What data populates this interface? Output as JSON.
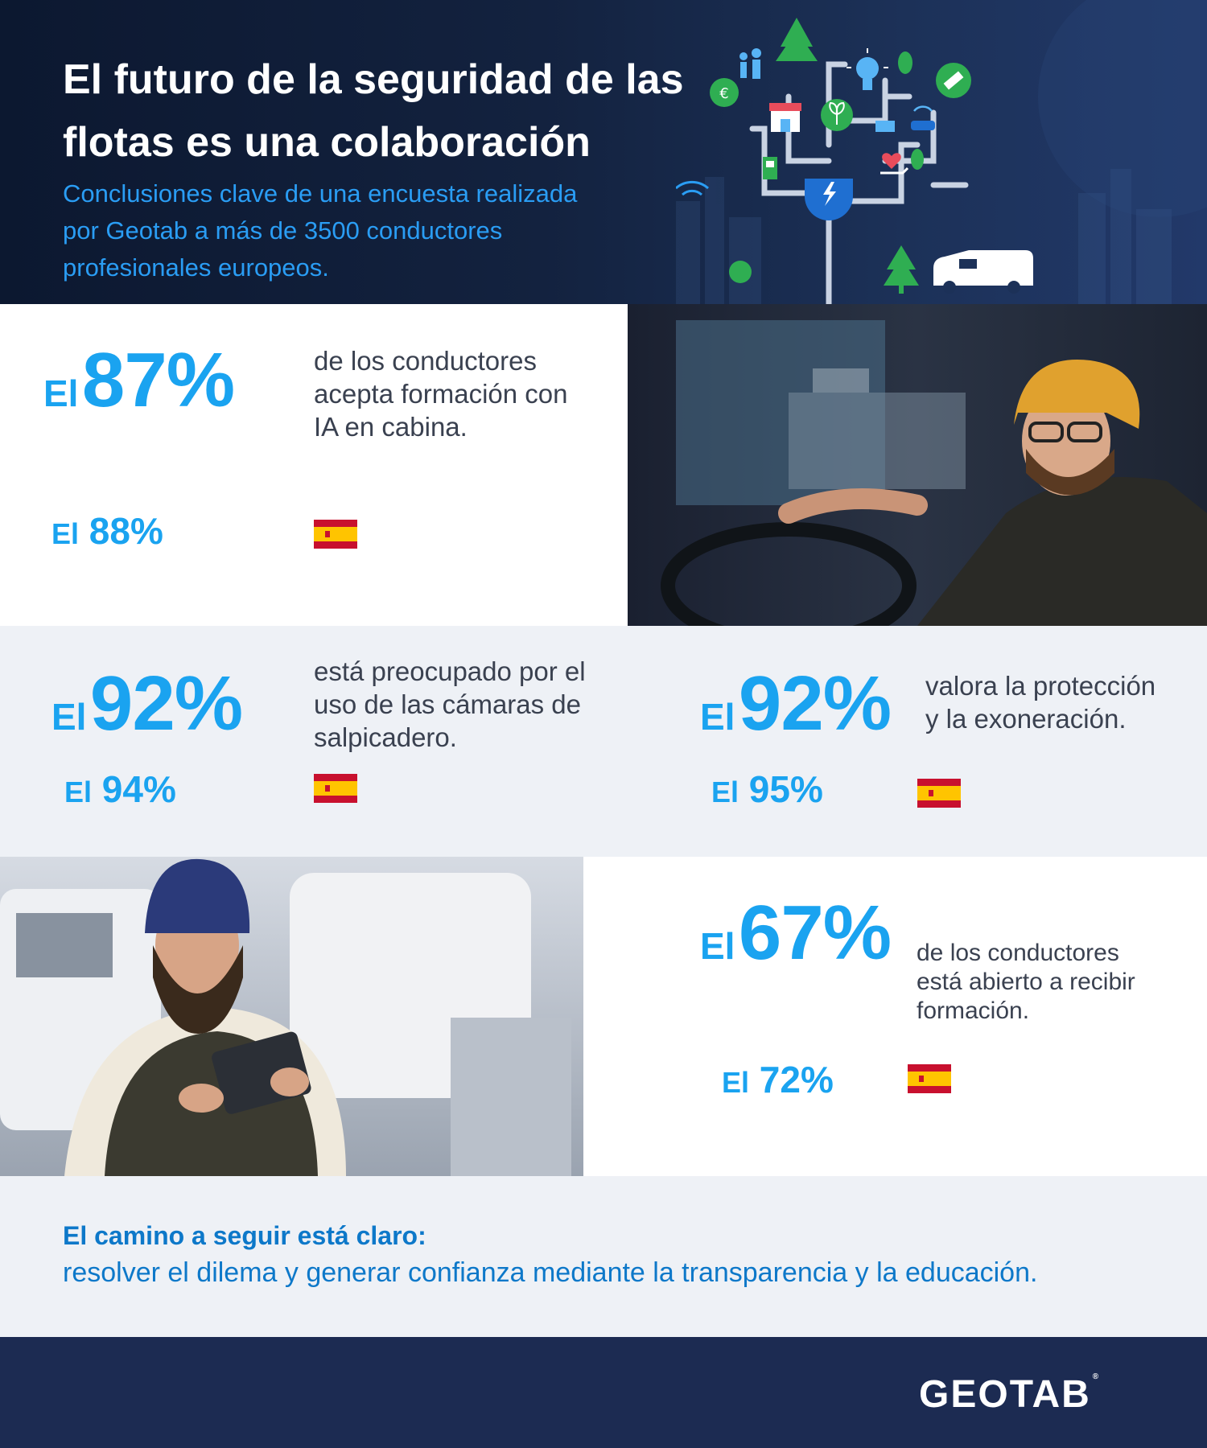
{
  "header": {
    "title_lines": [
      "El futuro de la seguridad de las",
      "flotas es una colaboración"
    ],
    "subtitle_lines": [
      "Conclusiones clave de una encuesta realizada",
      "por Geotab a más de 3500 conductores",
      "profesionales europeos."
    ]
  },
  "stats": [
    {
      "prefix": "El",
      "value": "87%",
      "description": [
        "de los conductores",
        "acepta formación con",
        "IA en cabina."
      ],
      "spain_prefix": "El",
      "spain_value": "88%"
    },
    {
      "prefix": "El",
      "value": "92%",
      "description": [
        "está preocupado por el",
        "uso de las cámaras de",
        "salpicadero."
      ],
      "spain_prefix": "El",
      "spain_value": "94%"
    },
    {
      "prefix": "El",
      "value": "92%",
      "description": [
        "valora la protección",
        "y la exoneración."
      ],
      "spain_prefix": "El",
      "spain_value": "95%"
    },
    {
      "prefix": "El",
      "value": "67%",
      "description": [
        "de los conductores",
        "está abierto a recibir",
        "formación."
      ],
      "spain_prefix": "El",
      "spain_value": "72%"
    }
  ],
  "conclusion": {
    "title": "El camino a seguir está claro:",
    "body": "resolver el dilema y generar confianza mediante la transparencia y la educación."
  },
  "footer": {
    "logo_text": "GEOTAB"
  },
  "colors": {
    "accent": "#1aa3f0",
    "header_bg": "#13223f",
    "footer_bg": "#1c2b52",
    "panel_bg": "#eef1f6",
    "conclusion_text": "#0d78c9"
  },
  "icons": [
    "tree-icon",
    "family-icon",
    "lightbulb-icon",
    "satellite-icon",
    "euro-icon",
    "shop-icon",
    "plant-icon",
    "solar-panel-icon",
    "car-icon",
    "fuel-pump-icon",
    "heart-hand-icon",
    "plug-icon",
    "van-icon",
    "spain-flag-icon"
  ]
}
